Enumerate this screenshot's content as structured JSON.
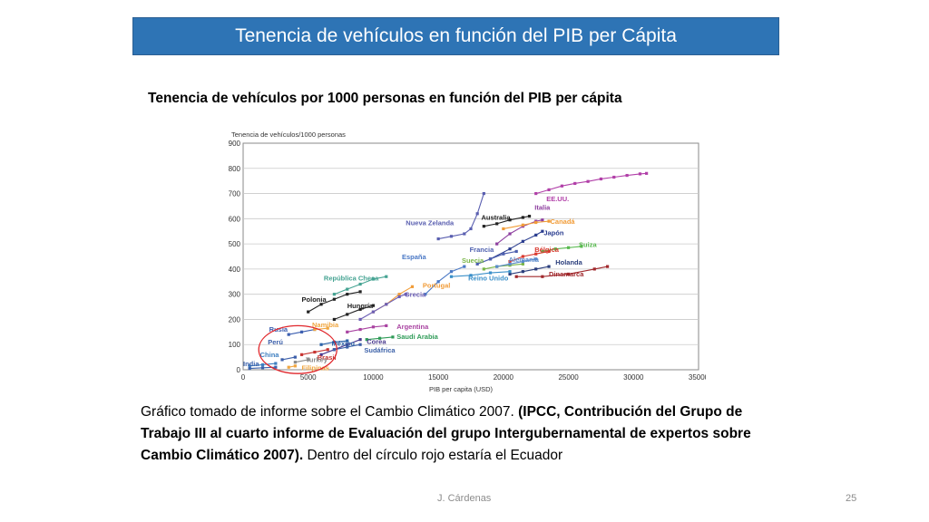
{
  "slide": {
    "title": "Tenencia de vehículos en función del PIB per Cápita",
    "heading": "Tenencia de vehículos por 1000 personas en función del PIB per cápita",
    "caption": {
      "part1": "Gráfico tomado de informe sobre el Cambio Climático 2007. ",
      "part2_bold": "(IPCC, Contribución del Grupo de Trabajo III al cuarto informe de Evaluación del grupo Intergubernamental de expertos sobre Cambio Climático 2007).",
      "part3": " Dentro del círculo rojo estaría el Ecuador"
    },
    "footer_author": "J. Cárdenas",
    "page_number": "25"
  },
  "chart_data": {
    "type": "line",
    "ylabel": "Tenencia de vehículos/1000 personas",
    "xlabel": "PIB per capita (USD)",
    "xlim": [
      0,
      35000
    ],
    "ylim": [
      0,
      900
    ],
    "x_ticks": [
      "0",
      "5000",
      "10000",
      "15000",
      "20000",
      "25000",
      "30000",
      "35000"
    ],
    "y_ticks": [
      "0",
      "100",
      "200",
      "300",
      "400",
      "500",
      "600",
      "700",
      "800",
      "900"
    ],
    "grid": true,
    "highlight_circle": {
      "cx": 4200,
      "cy": 80,
      "rx": 3000,
      "ry": 95,
      "color": "#e0262b"
    },
    "series": [
      {
        "name": "EE.UU.",
        "color": "#b13fa8",
        "label_at": [
          23300,
          670
        ],
        "points": [
          [
            22500,
            700
          ],
          [
            23500,
            715
          ],
          [
            24500,
            730
          ],
          [
            25500,
            740
          ],
          [
            26500,
            748
          ],
          [
            27500,
            758
          ],
          [
            28500,
            765
          ],
          [
            29500,
            772
          ],
          [
            30500,
            778
          ],
          [
            31000,
            780
          ]
        ]
      },
      {
        "name": "Nueva Zelanda",
        "color": "#5a5fb0",
        "label_at": [
          12500,
          575
        ],
        "points": [
          [
            15000,
            520
          ],
          [
            16000,
            530
          ],
          [
            17000,
            540
          ],
          [
            17500,
            560
          ],
          [
            18000,
            620
          ],
          [
            18500,
            700
          ]
        ]
      },
      {
        "name": "Australia",
        "color": "#222222",
        "label_at": [
          18300,
          595
        ],
        "points": [
          [
            18500,
            570
          ],
          [
            19500,
            580
          ],
          [
            20500,
            595
          ],
          [
            21500,
            605
          ],
          [
            22000,
            610
          ]
        ]
      },
      {
        "name": "Italia",
        "color": "#8e3f9f",
        "label_at": [
          22400,
          635
        ],
        "points": [
          [
            19500,
            500
          ],
          [
            20500,
            540
          ],
          [
            21500,
            570
          ],
          [
            22500,
            590
          ],
          [
            23000,
            595
          ]
        ]
      },
      {
        "name": "Canadá",
        "color": "#f19c38",
        "label_at": [
          23600,
          580
        ],
        "points": [
          [
            20000,
            560
          ],
          [
            21500,
            575
          ],
          [
            22500,
            585
          ],
          [
            23500,
            590
          ]
        ]
      },
      {
        "name": "Japón",
        "color": "#2a3d8f",
        "label_at": [
          23100,
          535
        ],
        "points": [
          [
            19000,
            440
          ],
          [
            20500,
            480
          ],
          [
            21500,
            510
          ],
          [
            22500,
            535
          ],
          [
            23000,
            550
          ]
        ]
      },
      {
        "name": "Suiza",
        "color": "#58b94f",
        "label_at": [
          25800,
          488
        ],
        "points": [
          [
            23000,
            470
          ],
          [
            24000,
            480
          ],
          [
            25000,
            485
          ],
          [
            26000,
            490
          ]
        ]
      },
      {
        "name": "Francia",
        "color": "#4d5fae",
        "label_at": [
          17400,
          468
        ],
        "points": [
          [
            18000,
            420
          ],
          [
            19000,
            440
          ],
          [
            20000,
            460
          ],
          [
            21000,
            470
          ]
        ]
      },
      {
        "name": "Bélgica",
        "color": "#d93a30",
        "label_at": [
          22400,
          468
        ],
        "points": [
          [
            20500,
            430
          ],
          [
            21500,
            450
          ],
          [
            22500,
            460
          ],
          [
            23500,
            470
          ]
        ]
      },
      {
        "name": "España",
        "color": "#4a78c5",
        "label_at": [
          12200,
          440
        ],
        "points": [
          [
            14000,
            300
          ],
          [
            15000,
            350
          ],
          [
            16000,
            390
          ],
          [
            17000,
            410
          ]
        ]
      },
      {
        "name": "Suecia",
        "color": "#7ab648",
        "label_at": [
          16800,
          425
        ],
        "points": [
          [
            18500,
            400
          ],
          [
            19500,
            410
          ],
          [
            20500,
            415
          ],
          [
            21500,
            420
          ]
        ]
      },
      {
        "name": "Alemania",
        "color": "#5a8acb",
        "label_at": [
          20400,
          428
        ],
        "points": [
          [
            19500,
            410
          ],
          [
            20500,
            420
          ],
          [
            21500,
            430
          ],
          [
            22500,
            440
          ]
        ]
      },
      {
        "name": "Holanda",
        "color": "#2b3e7c",
        "label_at": [
          24000,
          418
        ],
        "points": [
          [
            20500,
            380
          ],
          [
            21500,
            390
          ],
          [
            22500,
            400
          ],
          [
            23500,
            410
          ]
        ]
      },
      {
        "name": "Dinamarca",
        "color": "#a0282c",
        "label_at": [
          23500,
          370
        ],
        "points": [
          [
            21000,
            370
          ],
          [
            23000,
            370
          ],
          [
            25000,
            380
          ],
          [
            27000,
            400
          ],
          [
            28000,
            410
          ]
        ]
      },
      {
        "name": "República Checa",
        "color": "#45a392",
        "label_at": [
          6200,
          355
        ],
        "points": [
          [
            7000,
            300
          ],
          [
            8000,
            320
          ],
          [
            9000,
            340
          ],
          [
            10000,
            360
          ],
          [
            11000,
            370
          ]
        ]
      },
      {
        "name": "Reino Unido",
        "color": "#3a8fc9",
        "label_at": [
          17300,
          355
        ],
        "points": [
          [
            16000,
            370
          ],
          [
            17500,
            375
          ],
          [
            19000,
            385
          ],
          [
            20500,
            390
          ]
        ]
      },
      {
        "name": "Portugal",
        "color": "#f19c38",
        "label_at": [
          13800,
          325
        ],
        "points": [
          [
            10000,
            230
          ],
          [
            11000,
            260
          ],
          [
            12000,
            300
          ],
          [
            13000,
            330
          ]
        ]
      },
      {
        "name": "Grecia",
        "color": "#6c5fb5",
        "label_at": [
          12400,
          290
        ],
        "points": [
          [
            9000,
            200
          ],
          [
            10000,
            230
          ],
          [
            11000,
            260
          ],
          [
            12000,
            290
          ],
          [
            12500,
            300
          ]
        ]
      },
      {
        "name": "Polonia",
        "color": "#222222",
        "label_at": [
          4500,
          270
        ],
        "points": [
          [
            5000,
            230
          ],
          [
            6000,
            260
          ],
          [
            7000,
            280
          ],
          [
            8000,
            300
          ],
          [
            9000,
            310
          ]
        ]
      },
      {
        "name": "Hungría",
        "color": "#222222",
        "label_at": [
          8000,
          245
        ],
        "points": [
          [
            7000,
            200
          ],
          [
            8000,
            220
          ],
          [
            9000,
            240
          ],
          [
            10000,
            255
          ]
        ]
      },
      {
        "name": "Argentina",
        "color": "#a943a1",
        "label_at": [
          11800,
          162
        ],
        "points": [
          [
            8000,
            150
          ],
          [
            9000,
            160
          ],
          [
            10000,
            170
          ],
          [
            11000,
            175
          ]
        ]
      },
      {
        "name": "Saudi Arabia",
        "color": "#2e9b57",
        "label_at": [
          11800,
          122
        ],
        "points": [
          [
            9500,
            120
          ],
          [
            10500,
            125
          ],
          [
            11500,
            130
          ]
        ]
      },
      {
        "name": "Corea",
        "color": "#4a3a8f",
        "label_at": [
          9500,
          103
        ],
        "points": [
          [
            6000,
            60
          ],
          [
            7000,
            80
          ],
          [
            8000,
            100
          ],
          [
            9000,
            120
          ]
        ]
      },
      {
        "name": "Sudáfrica",
        "color": "#3c61a8",
        "label_at": [
          9300,
          68
        ],
        "points": [
          [
            7000,
            80
          ],
          [
            8000,
            90
          ],
          [
            9000,
            100
          ]
        ]
      },
      {
        "name": "Rusia",
        "color": "#3b5eb0",
        "label_at": [
          2000,
          152
        ],
        "points": [
          [
            3500,
            140
          ],
          [
            4500,
            150
          ],
          [
            5500,
            160
          ]
        ]
      },
      {
        "name": "Namibia",
        "color": "#f0a640",
        "label_at": [
          5300,
          170
        ],
        "points": [
          [
            5500,
            160
          ],
          [
            6500,
            165
          ]
        ]
      },
      {
        "name": "México",
        "color": "#2b62a8",
        "label_at": [
          6800,
          95
        ],
        "points": [
          [
            6000,
            100
          ],
          [
            7000,
            110
          ],
          [
            8000,
            115
          ]
        ]
      },
      {
        "name": "Brasil",
        "color": "#c73532",
        "label_at": [
          5700,
          40
        ],
        "points": [
          [
            4500,
            60
          ],
          [
            5500,
            70
          ],
          [
            6500,
            80
          ]
        ]
      },
      {
        "name": "Perú",
        "color": "#3c5faa",
        "label_at": [
          1900,
          100
        ],
        "points": [
          [
            3000,
            40
          ],
          [
            4000,
            50
          ]
        ]
      },
      {
        "name": "China",
        "color": "#3e7fc0",
        "label_at": [
          1300,
          50
        ],
        "points": [
          [
            500,
            15
          ],
          [
            1500,
            20
          ],
          [
            2500,
            25
          ]
        ]
      },
      {
        "name": "Turkey",
        "color": "#8a8a8a",
        "label_at": [
          4800,
          30
        ],
        "points": [
          [
            4000,
            30
          ],
          [
            5000,
            40
          ]
        ]
      },
      {
        "name": "Filipinas",
        "color": "#f0a640",
        "label_at": [
          4500,
          -2
        ],
        "points": [
          [
            3500,
            10
          ],
          [
            4000,
            15
          ]
        ]
      },
      {
        "name": "India",
        "color": "#3b62ad",
        "label_at": [
          0,
          15
        ],
        "points": [
          [
            500,
            5
          ],
          [
            1500,
            8
          ],
          [
            2500,
            10
          ]
        ]
      }
    ]
  }
}
